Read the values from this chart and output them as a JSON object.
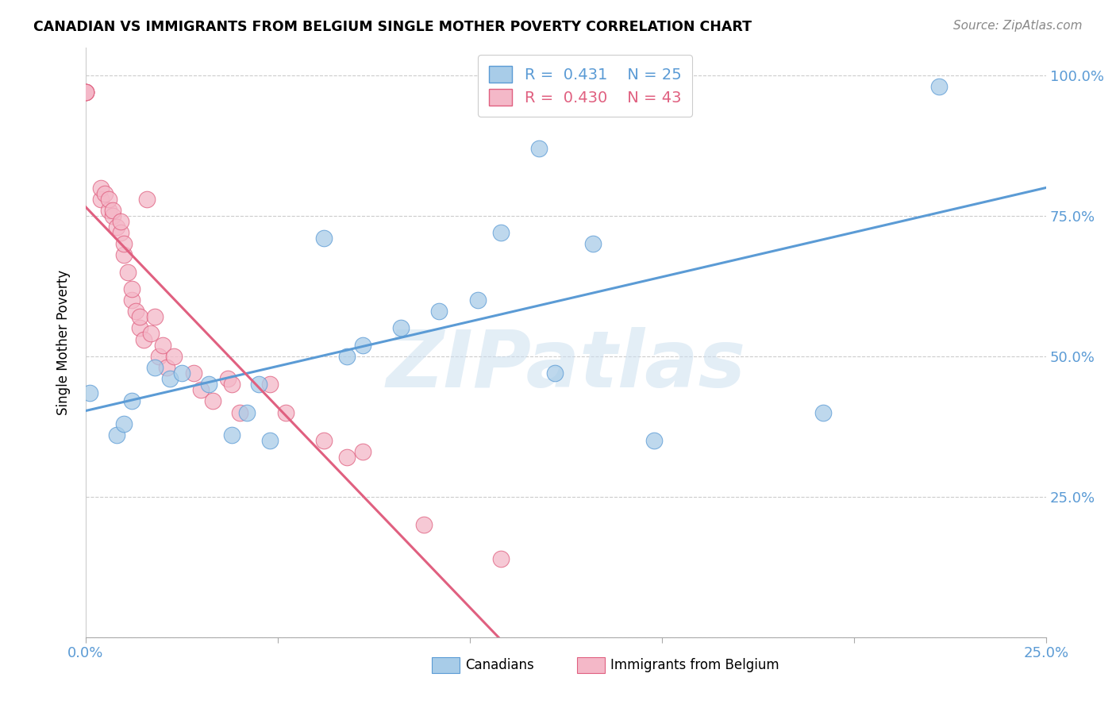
{
  "title": "CANADIAN VS IMMIGRANTS FROM BELGIUM SINGLE MOTHER POVERTY CORRELATION CHART",
  "source": "Source: ZipAtlas.com",
  "ylabel": "Single Mother Poverty",
  "legend_label_blue": "Canadians",
  "legend_label_pink": "Immigrants from Belgium",
  "watermark": "ZIPatlas",
  "xmin": 0.0,
  "xmax": 0.25,
  "ymin": 0.0,
  "ymax": 1.05,
  "yticks": [
    0.0,
    0.25,
    0.5,
    0.75,
    1.0
  ],
  "ytick_labels": [
    "",
    "25.0%",
    "50.0%",
    "75.0%",
    "100.0%"
  ],
  "xticks": [
    0.0,
    0.05,
    0.1,
    0.15,
    0.2,
    0.25
  ],
  "xtick_labels": [
    "0.0%",
    "",
    "",
    "",
    "",
    "25.0%"
  ],
  "blue_color": "#a8cce8",
  "pink_color": "#f4b8c8",
  "trendline_blue": "#5b9bd5",
  "trendline_pink": "#e06080",
  "canadians_x": [
    0.001,
    0.008,
    0.01,
    0.012,
    0.018,
    0.022,
    0.025,
    0.032,
    0.038,
    0.042,
    0.045,
    0.048,
    0.062,
    0.068,
    0.072,
    0.082,
    0.092,
    0.102,
    0.108,
    0.118,
    0.122,
    0.132,
    0.148,
    0.192,
    0.222
  ],
  "canadians_y": [
    0.435,
    0.36,
    0.38,
    0.42,
    0.48,
    0.46,
    0.47,
    0.45,
    0.36,
    0.4,
    0.45,
    0.35,
    0.71,
    0.5,
    0.52,
    0.55,
    0.58,
    0.6,
    0.72,
    0.87,
    0.47,
    0.7,
    0.35,
    0.4,
    0.98
  ],
  "belgium_x": [
    0.0,
    0.0,
    0.0,
    0.0,
    0.004,
    0.004,
    0.005,
    0.006,
    0.006,
    0.007,
    0.007,
    0.008,
    0.009,
    0.009,
    0.01,
    0.01,
    0.011,
    0.012,
    0.012,
    0.013,
    0.014,
    0.014,
    0.015,
    0.016,
    0.017,
    0.018,
    0.019,
    0.02,
    0.021,
    0.023,
    0.028,
    0.03,
    0.033,
    0.037,
    0.038,
    0.04,
    0.048,
    0.052,
    0.062,
    0.068,
    0.072,
    0.088,
    0.108
  ],
  "belgium_y": [
    0.97,
    0.97,
    0.97,
    0.97,
    0.78,
    0.8,
    0.79,
    0.76,
    0.78,
    0.75,
    0.76,
    0.73,
    0.72,
    0.74,
    0.68,
    0.7,
    0.65,
    0.6,
    0.62,
    0.58,
    0.55,
    0.57,
    0.53,
    0.78,
    0.54,
    0.57,
    0.5,
    0.52,
    0.48,
    0.5,
    0.47,
    0.44,
    0.42,
    0.46,
    0.45,
    0.4,
    0.45,
    0.4,
    0.35,
    0.32,
    0.33,
    0.2,
    0.14
  ]
}
